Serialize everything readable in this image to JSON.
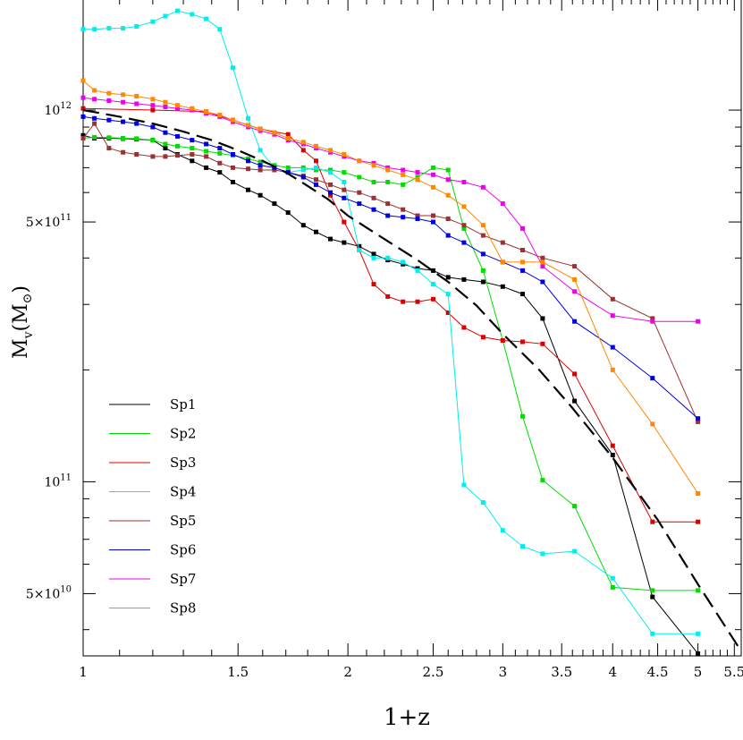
{
  "chart_data": {
    "type": "line",
    "xlabel": "1+z",
    "ylabel_main": "M",
    "ylabel_sub": "v",
    "ylabel_unit_open": "(M",
    "ylabel_unit_sym": "⊙",
    "ylabel_unit_close": ")",
    "xscale": "log",
    "yscale": "log",
    "xlim": [
      1,
      5.6
    ],
    "ylim": [
      34000000000,
      2000000000000
    ],
    "grid": false,
    "legend_position": "middle-left",
    "x_ticks": [
      {
        "value": 1,
        "label": "1"
      },
      {
        "value": 1.5,
        "label": "1.5"
      },
      {
        "value": 2,
        "label": "2"
      },
      {
        "value": 2.5,
        "label": "2.5"
      },
      {
        "value": 3,
        "label": "3"
      },
      {
        "value": 3.5,
        "label": "3.5"
      },
      {
        "value": 4,
        "label": "4"
      },
      {
        "value": 4.5,
        "label": "4.5"
      },
      {
        "value": 5,
        "label": "5"
      },
      {
        "value": 5.5,
        "label": "5.5"
      }
    ],
    "y_ticks": [
      {
        "value": 50000000000,
        "mantissa": "5×10",
        "exp": "10"
      },
      {
        "value": 100000000000,
        "mantissa": "10",
        "exp": "11"
      },
      {
        "value": 500000000000,
        "mantissa": "5×10",
        "exp": "11"
      },
      {
        "value": 1000000000000,
        "mantissa": "10",
        "exp": "12"
      }
    ],
    "series": [
      {
        "name": "Sp1",
        "color": "#000000",
        "x": [
          1.0,
          1.03,
          1.07,
          1.11,
          1.15,
          1.2,
          1.24,
          1.28,
          1.33,
          1.38,
          1.43,
          1.48,
          1.54,
          1.59,
          1.65,
          1.71,
          1.78,
          1.84,
          1.91,
          1.98,
          2.06,
          2.14,
          2.22,
          2.31,
          2.4,
          2.5,
          2.6,
          2.71,
          2.85,
          3.0,
          3.16,
          3.33,
          3.62,
          4.0,
          4.44,
          5.0
        ],
        "values": [
          855000000000,
          840000000000,
          840000000000,
          838000000000,
          835000000000,
          830000000000,
          790000000000,
          760000000000,
          730000000000,
          700000000000,
          680000000000,
          640000000000,
          610000000000,
          590000000000,
          560000000000,
          530000000000,
          490000000000,
          470000000000,
          450000000000,
          440000000000,
          430000000000,
          410000000000,
          395000000000,
          385000000000,
          375000000000,
          370000000000,
          355000000000,
          350000000000,
          345000000000,
          335000000000,
          320000000000,
          275000000000,
          165000000000,
          118000000000,
          49000000000,
          34500000000
        ]
      },
      {
        "name": "Sp2",
        "color": "#00dd00",
        "x": [
          1.0,
          1.03,
          1.07,
          1.11,
          1.15,
          1.2,
          1.24,
          1.28,
          1.33,
          1.38,
          1.43,
          1.48,
          1.54,
          1.59,
          1.65,
          1.71,
          1.78,
          1.84,
          1.91,
          1.98,
          2.06,
          2.14,
          2.22,
          2.31,
          2.4,
          2.5,
          2.6,
          2.71,
          2.85,
          3.0,
          3.16,
          3.33,
          3.62,
          4.0,
          4.44,
          5.0
        ],
        "values": [
          840000000000,
          845000000000,
          843000000000,
          840000000000,
          838000000000,
          830000000000,
          810000000000,
          800000000000,
          790000000000,
          775000000000,
          765000000000,
          755000000000,
          740000000000,
          725000000000,
          710000000000,
          700000000000,
          700000000000,
          690000000000,
          690000000000,
          680000000000,
          660000000000,
          640000000000,
          640000000000,
          630000000000,
          660000000000,
          700000000000,
          690000000000,
          480000000000,
          370000000000,
          240000000000,
          150000000000,
          101000000000,
          86000000000,
          52000000000,
          51000000000,
          51000000000
        ]
      },
      {
        "name": "Sp3",
        "color": "#dd0000",
        "x": [
          1.0,
          1.2,
          1.38,
          1.48,
          1.59,
          1.71,
          1.78,
          1.84,
          1.91,
          1.98,
          2.06,
          2.14,
          2.22,
          2.31,
          2.4,
          2.5,
          2.6,
          2.71,
          2.85,
          3.0,
          3.16,
          3.33,
          3.62,
          4.0,
          4.44,
          5.0
        ],
        "values": [
          1010000000000,
          1000000000000,
          990000000000,
          940000000000,
          890000000000,
          860000000000,
          780000000000,
          730000000000,
          590000000000,
          500000000000,
          420000000000,
          340000000000,
          315000000000,
          305000000000,
          305000000000,
          310000000000,
          285000000000,
          260000000000,
          245000000000,
          240000000000,
          238000000000,
          235000000000,
          195000000000,
          125000000000,
          78000000000,
          78000000000
        ]
      },
      {
        "name": "Sp4",
        "color": "#00eeee",
        "x": [
          1.0,
          1.03,
          1.07,
          1.11,
          1.15,
          1.2,
          1.24,
          1.28,
          1.33,
          1.38,
          1.43,
          1.48,
          1.54,
          1.59,
          1.65,
          1.71,
          1.78,
          1.84,
          1.91,
          1.98,
          2.06,
          2.14,
          2.22,
          2.31,
          2.4,
          2.5,
          2.6,
          2.71,
          2.85,
          3.0,
          3.16,
          3.33,
          3.62,
          4.0,
          4.44,
          5.0
        ],
        "values": [
          1650000000000,
          1650000000000,
          1660000000000,
          1660000000000,
          1680000000000,
          1730000000000,
          1790000000000,
          1850000000000,
          1810000000000,
          1760000000000,
          1650000000000,
          1300000000000,
          950000000000,
          780000000000,
          700000000000,
          680000000000,
          690000000000,
          700000000000,
          680000000000,
          640000000000,
          420000000000,
          400000000000,
          400000000000,
          390000000000,
          370000000000,
          340000000000,
          320000000000,
          98000000000,
          88000000000,
          74000000000,
          67000000000,
          64000000000,
          65000000000,
          55000000000,
          39000000000,
          39000000000
        ]
      },
      {
        "name": "Sp5",
        "color": "#993333",
        "x": [
          1.0,
          1.03,
          1.07,
          1.11,
          1.15,
          1.2,
          1.24,
          1.28,
          1.33,
          1.38,
          1.43,
          1.48,
          1.54,
          1.59,
          1.65,
          1.71,
          1.78,
          1.84,
          1.91,
          1.98,
          2.06,
          2.14,
          2.22,
          2.31,
          2.4,
          2.5,
          2.6,
          2.71,
          2.85,
          3.0,
          3.16,
          3.33,
          3.62,
          4.0,
          4.44,
          5.0
        ],
        "values": [
          840000000000,
          920000000000,
          790000000000,
          770000000000,
          760000000000,
          750000000000,
          750000000000,
          755000000000,
          760000000000,
          750000000000,
          720000000000,
          700000000000,
          695000000000,
          690000000000,
          690000000000,
          680000000000,
          665000000000,
          650000000000,
          630000000000,
          610000000000,
          600000000000,
          580000000000,
          560000000000,
          540000000000,
          520000000000,
          520000000000,
          510000000000,
          490000000000,
          460000000000,
          440000000000,
          420000000000,
          400000000000,
          380000000000,
          310000000000,
          275000000000,
          145000000000
        ]
      },
      {
        "name": "Sp6",
        "color": "#0000dd",
        "x": [
          1.0,
          1.03,
          1.07,
          1.11,
          1.15,
          1.2,
          1.24,
          1.28,
          1.33,
          1.38,
          1.43,
          1.48,
          1.54,
          1.59,
          1.65,
          1.71,
          1.78,
          1.84,
          1.91,
          1.98,
          2.06,
          2.14,
          2.22,
          2.31,
          2.4,
          2.5,
          2.6,
          2.71,
          2.85,
          3.0,
          3.16,
          3.33,
          3.62,
          4.0,
          4.44,
          5.0
        ],
        "values": [
          960000000000,
          950000000000,
          940000000000,
          930000000000,
          920000000000,
          900000000000,
          870000000000,
          850000000000,
          830000000000,
          810000000000,
          790000000000,
          760000000000,
          730000000000,
          710000000000,
          700000000000,
          680000000000,
          660000000000,
          630000000000,
          600000000000,
          580000000000,
          560000000000,
          540000000000,
          520000000000,
          515000000000,
          510000000000,
          500000000000,
          460000000000,
          440000000000,
          410000000000,
          390000000000,
          370000000000,
          345000000000,
          270000000000,
          230000000000,
          190000000000,
          148000000000
        ]
      },
      {
        "name": "Sp7",
        "color": "#ee00ee",
        "x": [
          1.0,
          1.03,
          1.07,
          1.11,
          1.15,
          1.2,
          1.24,
          1.28,
          1.33,
          1.38,
          1.43,
          1.48,
          1.54,
          1.59,
          1.65,
          1.71,
          1.78,
          1.84,
          1.91,
          1.98,
          2.06,
          2.14,
          2.22,
          2.31,
          2.4,
          2.5,
          2.6,
          2.71,
          2.85,
          3.0,
          3.16,
          3.33,
          3.62,
          4.0,
          4.44,
          5.0
        ],
        "values": [
          1080000000000,
          1070000000000,
          1060000000000,
          1050000000000,
          1040000000000,
          1030000000000,
          1020000000000,
          1010000000000,
          1000000000000,
          980000000000,
          960000000000,
          930000000000,
          900000000000,
          880000000000,
          860000000000,
          830000000000,
          810000000000,
          790000000000,
          770000000000,
          750000000000,
          730000000000,
          720000000000,
          700000000000,
          690000000000,
          680000000000,
          670000000000,
          650000000000,
          640000000000,
          620000000000,
          560000000000,
          480000000000,
          380000000000,
          325000000000,
          280000000000,
          270000000000,
          270000000000
        ]
      },
      {
        "name": "Sp8",
        "color": "#ff8800",
        "x": [
          1.0,
          1.03,
          1.07,
          1.11,
          1.15,
          1.2,
          1.24,
          1.28,
          1.33,
          1.38,
          1.43,
          1.48,
          1.54,
          1.59,
          1.65,
          1.71,
          1.78,
          1.84,
          1.91,
          1.98,
          2.06,
          2.14,
          2.22,
          2.31,
          2.4,
          2.5,
          2.6,
          2.71,
          2.85,
          3.0,
          3.16,
          3.33,
          3.62,
          4.0,
          4.44,
          5.0
        ],
        "values": [
          1200000000000,
          1130000000000,
          1110000000000,
          1100000000000,
          1090000000000,
          1070000000000,
          1050000000000,
          1030000000000,
          1010000000000,
          990000000000,
          970000000000,
          940000000000,
          910000000000,
          890000000000,
          870000000000,
          840000000000,
          820000000000,
          800000000000,
          780000000000,
          760000000000,
          730000000000,
          710000000000,
          690000000000,
          670000000000,
          650000000000,
          620000000000,
          590000000000,
          550000000000,
          490000000000,
          390000000000,
          390000000000,
          390000000000,
          350000000000,
          200000000000,
          143000000000,
          93000000000
        ]
      },
      {
        "x": [
          1.0,
          1.1,
          1.2,
          1.3,
          1.4,
          1.5,
          1.6,
          1.7,
          1.8,
          1.9,
          2.0,
          2.2,
          2.4,
          2.6,
          2.8,
          3.0,
          3.3,
          3.6,
          4.0,
          4.5,
          5.0,
          5.6
        ],
        "values": [
          1000000000000,
          960000000000,
          920000000000,
          875000000000,
          830000000000,
          780000000000,
          730000000000,
          680000000000,
          625000000000,
          575000000000,
          520000000000,
          450000000000,
          395000000000,
          345000000000,
          298000000000,
          250000000000,
          200000000000,
          158000000000,
          116000000000,
          79000000000,
          53000000000,
          35000000000
        ],
        "color": "#000000",
        "dashed": true
      }
    ]
  }
}
